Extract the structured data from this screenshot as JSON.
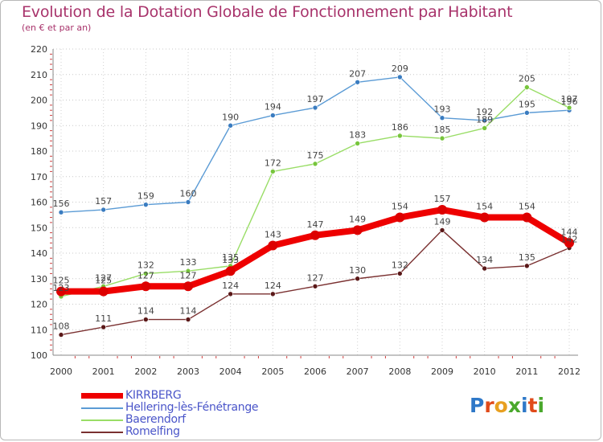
{
  "header": {
    "title": "Evolution de la Dotation Globale de Fonctionnement par Habitant",
    "subtitle": "(en € et par an)"
  },
  "chart_data": {
    "type": "line",
    "title": "Evolution de la Dotation Globale de Fonctionnement par Habitant",
    "subtitle": "(en € et par an)",
    "xlabel": "",
    "ylabel": "",
    "x": [
      "2000",
      "2001",
      "2002",
      "2003",
      "2004",
      "2005",
      "2006",
      "2007",
      "2008",
      "2009",
      "2010",
      "2011",
      "2012"
    ],
    "ylim": [
      100,
      220
    ],
    "yticks": [
      100,
      110,
      120,
      130,
      140,
      150,
      160,
      170,
      180,
      190,
      200,
      210,
      220
    ],
    "grid": true,
    "legend_position": "bottom-left",
    "series": [
      {
        "name": "Hellering-lès-Fénétrange",
        "color": "#5b9bd5",
        "marker": "#3a7cc0",
        "values": [
          156,
          157,
          159,
          160,
          190,
          194,
          197,
          207,
          209,
          193,
          192,
          195,
          196
        ]
      },
      {
        "name": "Baerendorf",
        "color": "#99dd66",
        "marker": "#77c53c",
        "values": [
          123,
          127,
          132,
          133,
          135,
          172,
          175,
          183,
          186,
          185,
          189,
          205,
          197
        ]
      },
      {
        "name": "Romelfing",
        "color": "#7a3030",
        "marker": "#5a1818",
        "values": [
          108,
          111,
          114,
          114,
          124,
          124,
          127,
          130,
          132,
          149,
          134,
          135,
          142
        ]
      },
      {
        "name": "KIRRBERG",
        "color": "#ee0000",
        "marker": "#dd0000",
        "values": [
          125,
          125,
          127,
          127,
          133,
          143,
          147,
          149,
          154,
          157,
          154,
          154,
          144
        ]
      }
    ],
    "legend": [
      {
        "name": "KIRRBERG",
        "color": "#ee0000"
      },
      {
        "name": "Hellering-lès-Fénétrange",
        "color": "#5b9bd5"
      },
      {
        "name": "Baerendorf",
        "color": "#99dd66"
      },
      {
        "name": "Romelfing",
        "color": "#7a3030"
      }
    ]
  },
  "logo": {
    "text": "Proxiti",
    "colors": [
      "#2e78c8",
      "#e04a1a",
      "#e8a020",
      "#4aa82c",
      "#2e78c8",
      "#e04a1a",
      "#4aa82c"
    ]
  }
}
